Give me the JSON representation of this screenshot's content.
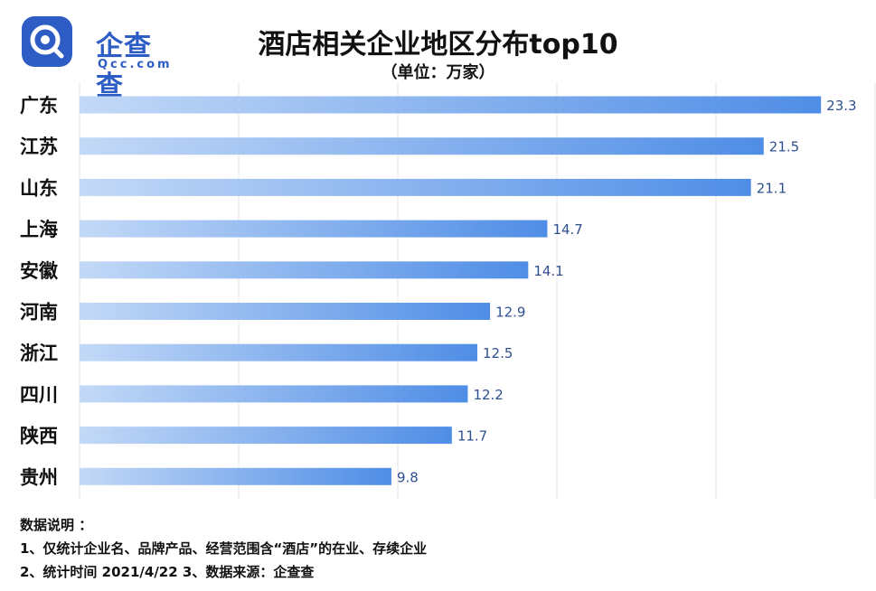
{
  "brand": {
    "name": "企查查",
    "domain": "Qcc.com",
    "color": "#2d5cc5"
  },
  "header": {
    "title": "酒店相关企业地区分布top10",
    "subtitle": "（单位：万家）"
  },
  "chart_data": {
    "type": "bar",
    "orientation": "horizontal",
    "title": "酒店相关企业地区分布top10",
    "unit": "（单位：万家）",
    "categories": [
      "广东",
      "江苏",
      "山东",
      "上海",
      "安徽",
      "河南",
      "浙江",
      "四川",
      "陕西",
      "贵州"
    ],
    "values": [
      23.3,
      21.5,
      21.1,
      14.7,
      14.1,
      12.9,
      12.5,
      12.2,
      11.7,
      9.8
    ],
    "value_labels": [
      "23.3",
      "21.5",
      "21.1",
      "14.7",
      "14.1",
      "12.9",
      "12.5",
      "12.2",
      "11.7",
      "9.8"
    ],
    "xlim": [
      0,
      25
    ],
    "grid": true,
    "bar_gradient": [
      "#c3d9f7",
      "#4f8de6"
    ],
    "label_color": "#2e4f8f"
  },
  "notes": {
    "heading": "数据说明 ：",
    "line1": "1、仅统计企业名、品牌产品、经营范围含“酒店”的在业、存续企业",
    "line2": "2、统计时间  2021/4/22    3、数据来源：企查查"
  }
}
